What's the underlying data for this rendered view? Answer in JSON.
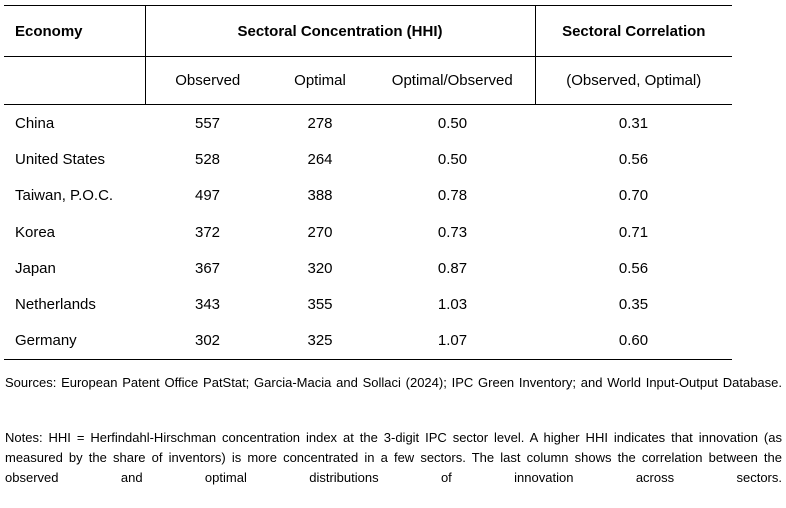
{
  "table": {
    "headers": {
      "economy": "Economy",
      "concentration": "Sectoral Concentration (HHI)",
      "correlation": "Sectoral Correlation"
    },
    "subheaders": {
      "observed": "Observed",
      "optimal": "Optimal",
      "ratio": "Optimal/Observed",
      "correlation": "(Observed, Optimal)"
    },
    "rows": [
      {
        "economy": "China",
        "observed": "557",
        "optimal": "278",
        "ratio": "0.50",
        "correlation": "0.31"
      },
      {
        "economy": "United States",
        "observed": "528",
        "optimal": "264",
        "ratio": "0.50",
        "correlation": "0.56"
      },
      {
        "economy": "Taiwan, P.O.C.",
        "observed": "497",
        "optimal": "388",
        "ratio": "0.78",
        "correlation": "0.70"
      },
      {
        "economy": "Korea",
        "observed": "372",
        "optimal": "270",
        "ratio": "0.73",
        "correlation": "0.71"
      },
      {
        "economy": "Japan",
        "observed": "367",
        "optimal": "320",
        "ratio": "0.87",
        "correlation": "0.56"
      },
      {
        "economy": "Netherlands",
        "observed": "343",
        "optimal": "355",
        "ratio": "1.03",
        "correlation": "0.35"
      },
      {
        "economy": "Germany",
        "observed": "302",
        "optimal": "325",
        "ratio": "1.07",
        "correlation": "0.60"
      }
    ]
  },
  "sources": "Sources: European Patent Office PatStat; Garcia-Macia and Sollaci (2024); IPC Green Inventory; and World Input-Output Database.",
  "notes": "Notes: HHI = Herfindahl-Hirschman concentration index at the 3-digit IPC sector level. A higher HHI indicates that innovation (as measured by the share of inventors) is more concentrated in a few sectors. The last column shows the correlation between the observed and optimal distributions of innovation across sectors."
}
